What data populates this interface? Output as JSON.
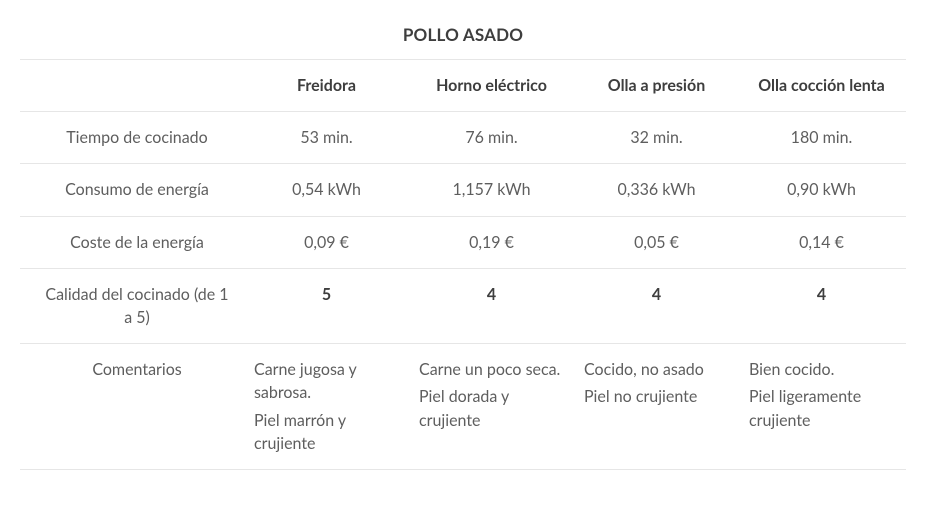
{
  "title": "POLLO ASADO",
  "columns": [
    "Freidora",
    "Horno eléctrico",
    "Olla a presión",
    "Olla cocción lenta"
  ],
  "rows": [
    {
      "label": "Tiempo de cocinado",
      "values": [
        "53 min.",
        "76 min.",
        "32 min.",
        "180 min."
      ],
      "bold": false
    },
    {
      "label": "Consumo de energía",
      "values": [
        "0,54 kWh",
        "1,157 kWh",
        "0,336 kWh",
        "0,90 kWh"
      ],
      "bold": false
    },
    {
      "label": "Coste de la energía",
      "values": [
        "0,09 €",
        "0,19 €",
        "0,05 €",
        "0,14 €"
      ],
      "bold": false
    },
    {
      "label": "Calidad del cocinado (de 1 a 5)",
      "values": [
        "5",
        "4",
        "4",
        "4"
      ],
      "bold": true
    }
  ],
  "comments_label": "Comentarios",
  "comments": [
    [
      "Carne jugosa y sabrosa.",
      "Piel marrón y crujiente"
    ],
    [
      "Carne un poco seca.",
      "Piel dorada y crujiente"
    ],
    [
      "Cocido, no asado",
      "Piel no crujiente"
    ],
    [
      "Bien cocido.",
      "Piel ligeramente crujiente"
    ]
  ],
  "style": {
    "font_family": "Lato, Helvetica Neue, Arial, sans-serif",
    "text_color": "#5e5e5e",
    "heading_color": "#3e3e3e",
    "border_color": "#e6e6e6",
    "background_color": "#ffffff",
    "font_size_body": 16,
    "font_size_title": 17
  }
}
